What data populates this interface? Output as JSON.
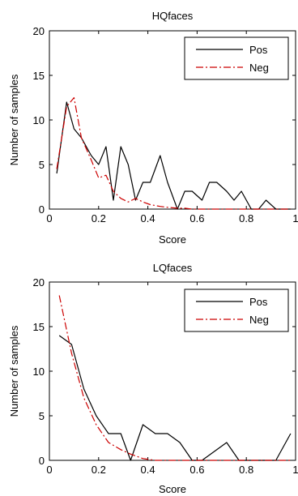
{
  "chart_data": [
    {
      "type": "line",
      "title": "HQfaces",
      "xlabel": "Score",
      "ylabel": "Number of samples",
      "xlim": [
        0,
        1
      ],
      "ylim": [
        0,
        20
      ],
      "xticks": [
        0,
        0.2,
        0.4,
        0.6,
        0.8,
        1
      ],
      "xtick_labels": [
        "0",
        "0.2",
        "0.4",
        "0.6",
        "0.8",
        "1"
      ],
      "yticks": [
        0,
        5,
        10,
        15,
        20
      ],
      "ytick_labels": [
        "0",
        "5",
        "10",
        "15",
        "20"
      ],
      "legend_position": "top-right",
      "series": [
        {
          "name": "Pos",
          "color": "#000000",
          "style": "solid",
          "x": [
            0.03,
            0.07,
            0.1,
            0.13,
            0.17,
            0.2,
            0.23,
            0.26,
            0.29,
            0.32,
            0.35,
            0.38,
            0.41,
            0.45,
            0.48,
            0.52,
            0.55,
            0.58,
            0.62,
            0.65,
            0.68,
            0.72,
            0.75,
            0.78,
            0.82,
            0.85,
            0.88,
            0.92,
            0.95,
            0.98
          ],
          "y": [
            4,
            12,
            9,
            8,
            6,
            5,
            7,
            1,
            7,
            5,
            1,
            3,
            3,
            6,
            3,
            0,
            2,
            2,
            1,
            3,
            3,
            2,
            1,
            2,
            0,
            0,
            1,
            0,
            0,
            0
          ]
        },
        {
          "name": "Neg",
          "color": "#cc0000",
          "style": "dashdot",
          "x": [
            0.03,
            0.07,
            0.1,
            0.13,
            0.17,
            0.2,
            0.23,
            0.26,
            0.29,
            0.32,
            0.35,
            0.38,
            0.41,
            0.45,
            0.48,
            0.52,
            0.55,
            0.58,
            0.62,
            0.65,
            0.68,
            0.72,
            0.75,
            0.78,
            0.82,
            0.85,
            0.88,
            0.92,
            0.95,
            0.98
          ],
          "y": [
            4.5,
            11.5,
            12.5,
            8,
            5.5,
            3.5,
            3.8,
            2,
            1.2,
            0.8,
            1.2,
            0.8,
            0.5,
            0.3,
            0.2,
            0.1,
            0.1,
            0,
            0,
            0,
            0,
            0,
            0,
            0,
            0,
            0,
            0,
            0,
            0,
            0
          ]
        }
      ]
    },
    {
      "type": "line",
      "title": "LQfaces",
      "xlabel": "Score",
      "ylabel": "Number of samples",
      "xlim": [
        0,
        1
      ],
      "ylim": [
        0,
        20
      ],
      "xticks": [
        0,
        0.2,
        0.4,
        0.6,
        0.8,
        1
      ],
      "xtick_labels": [
        "0",
        "0.2",
        "0.4",
        "0.6",
        "0.8",
        "1"
      ],
      "yticks": [
        0,
        5,
        10,
        15,
        20
      ],
      "ytick_labels": [
        "0",
        "5",
        "10",
        "15",
        "20"
      ],
      "legend_position": "top-right",
      "series": [
        {
          "name": "Pos",
          "color": "#000000",
          "style": "solid",
          "x": [
            0.04,
            0.09,
            0.14,
            0.19,
            0.24,
            0.29,
            0.33,
            0.38,
            0.43,
            0.48,
            0.53,
            0.58,
            0.62,
            0.67,
            0.72,
            0.77,
            0.82,
            0.87,
            0.92,
            0.98
          ],
          "y": [
            14,
            13,
            8,
            5,
            3,
            3,
            0,
            4,
            3,
            3,
            2,
            0,
            0,
            1,
            2,
            0,
            0,
            0,
            0,
            3
          ]
        },
        {
          "name": "Neg",
          "color": "#cc0000",
          "style": "dashdot",
          "x": [
            0.04,
            0.09,
            0.14,
            0.19,
            0.24,
            0.29,
            0.33,
            0.38,
            0.43,
            0.48,
            0.53,
            0.58,
            0.62,
            0.67,
            0.72,
            0.77,
            0.82,
            0.87,
            0.92,
            0.98
          ],
          "y": [
            18.5,
            12,
            7,
            4,
            2,
            1.2,
            0.7,
            0.2,
            0,
            0,
            0,
            0,
            0,
            0,
            0,
            0,
            0,
            0,
            0,
            0
          ]
        }
      ]
    }
  ]
}
